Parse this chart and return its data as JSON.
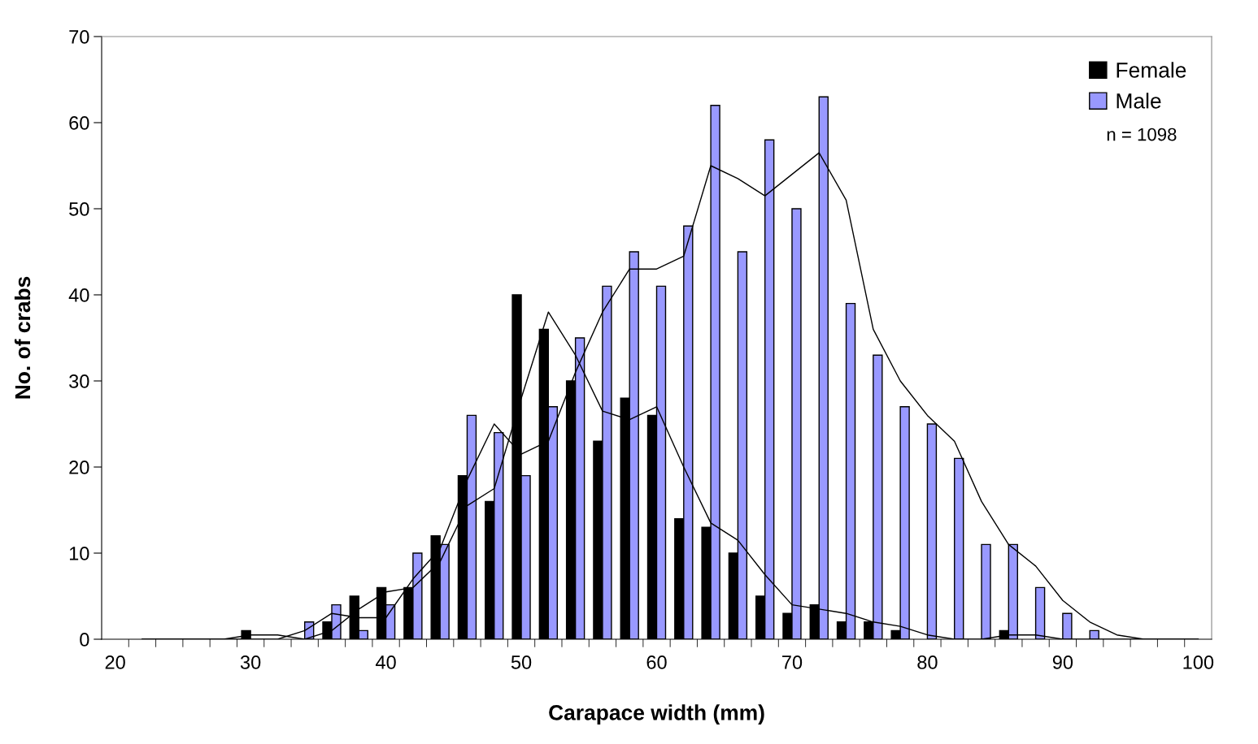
{
  "chart_data": {
    "type": "bar",
    "xlabel": "Carapace width (mm)",
    "ylabel": "No. of crabs",
    "categories": [
      "20",
      null,
      null,
      null,
      null,
      "30",
      null,
      null,
      null,
      null,
      "40",
      null,
      null,
      null,
      null,
      "50",
      null,
      null,
      null,
      null,
      "60",
      null,
      null,
      null,
      null,
      "70",
      null,
      null,
      null,
      null,
      "80",
      null,
      null,
      null,
      null,
      "90",
      null,
      null,
      null,
      null,
      "100"
    ],
    "series": [
      {
        "name": "Female",
        "color": "#000000",
        "values": [
          0,
          0,
          0,
          0,
          0,
          1,
          0,
          0,
          2,
          5,
          6,
          6,
          12,
          19,
          16,
          40,
          36,
          30,
          23,
          28,
          26,
          14,
          13,
          10,
          5,
          3,
          4,
          2,
          2,
          1,
          0,
          0,
          0,
          1,
          0,
          0,
          0,
          0,
          0,
          0,
          0
        ]
      },
      {
        "name": "Male",
        "color": "#9999ff",
        "values": [
          0,
          0,
          0,
          0,
          0,
          0,
          0,
          2,
          4,
          1,
          4,
          10,
          11,
          26,
          24,
          19,
          27,
          35,
          41,
          45,
          41,
          48,
          62,
          45,
          58,
          50,
          63,
          39,
          33,
          27,
          25,
          21,
          11,
          11,
          6,
          3,
          1,
          0,
          0,
          0,
          0
        ]
      },
      {
        "type": "line",
        "color": "#000000",
        "values": [
          null,
          0,
          0,
          0,
          0,
          0.5,
          0.5,
          0,
          1,
          3.5,
          5.5,
          6,
          9,
          15.5,
          17.5,
          28,
          38,
          33,
          26.5,
          25.5,
          27,
          20,
          13.5,
          11.5,
          7.5,
          4,
          3.5,
          3,
          2,
          1.5,
          0.5,
          0,
          0,
          0.5,
          0.5,
          0,
          0,
          0,
          0,
          0,
          0
        ]
      },
      {
        "type": "line",
        "color": "#000000",
        "values": [
          null,
          0,
          0,
          0,
          0,
          0,
          0,
          1,
          3,
          2.5,
          2.5,
          7,
          10.5,
          18.5,
          25,
          21.5,
          23,
          31,
          38,
          43,
          43,
          44.5,
          55,
          53.5,
          51.5,
          54,
          56.5,
          51,
          36,
          30,
          26,
          23,
          16,
          11,
          8.5,
          4.5,
          2,
          0.5,
          0,
          0,
          0
        ]
      }
    ],
    "ylim": [
      0,
      70
    ],
    "yticks": [
      0,
      10,
      20,
      30,
      40,
      50,
      60,
      70
    ],
    "grid": false,
    "legend": "top right",
    "annotations": [
      "n = 1098"
    ]
  }
}
